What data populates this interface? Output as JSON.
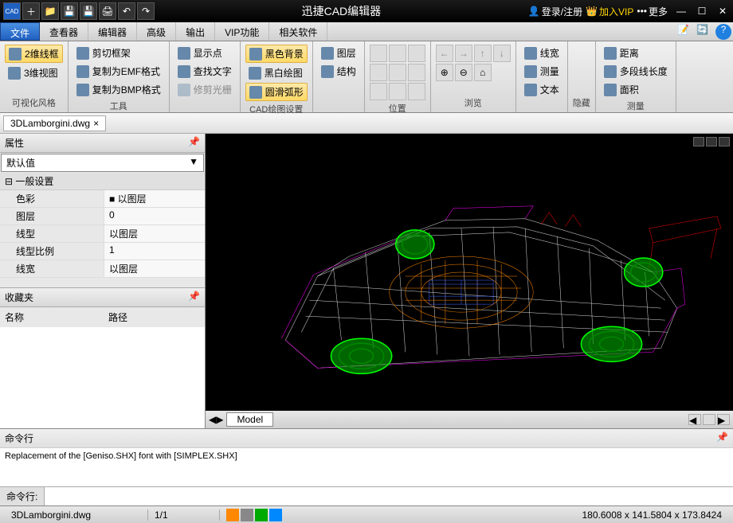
{
  "app": {
    "title": "迅捷CAD编辑器",
    "login": "登录/注册",
    "vip": "加入VIP",
    "more": "更多"
  },
  "menu": {
    "tabs": [
      "文件",
      "查看器",
      "编辑器",
      "高级",
      "输出",
      "VIP功能",
      "相关软件"
    ],
    "active_index": 0
  },
  "ribbon": {
    "groups": [
      {
        "label": "可视化风格",
        "items": [
          {
            "t": "2维线框",
            "hl": true
          },
          {
            "t": "3维视图"
          }
        ]
      },
      {
        "label": "工具",
        "items": [
          {
            "t": "剪切框架"
          },
          {
            "t": "复制为EMF格式"
          },
          {
            "t": "复制为BMP格式"
          }
        ]
      },
      {
        "label": "",
        "items": [
          {
            "t": "显示点"
          },
          {
            "t": "查找文字"
          },
          {
            "t": "修剪光栅",
            "disabled": true
          }
        ]
      },
      {
        "label": "CAD绘图设置",
        "items": [
          {
            "t": "黑色背景",
            "hl": true
          },
          {
            "t": "黑白绘图"
          },
          {
            "t": "圆滑弧形",
            "hl": true
          }
        ]
      },
      {
        "label": "",
        "items": [
          {
            "t": "图层"
          },
          {
            "t": "结构"
          }
        ]
      },
      {
        "label": "位置",
        "icons": true
      },
      {
        "label": "浏览",
        "arrows": true
      },
      {
        "label": "",
        "items": [
          {
            "t": "线宽"
          },
          {
            "t": "测量"
          },
          {
            "t": "文本"
          }
        ]
      },
      {
        "label": "隐藏"
      },
      {
        "label": "测量",
        "items": [
          {
            "t": "距离"
          },
          {
            "t": "多段线长度"
          },
          {
            "t": "面积"
          }
        ]
      }
    ]
  },
  "doc": {
    "filename": "3DLamborgini.dwg"
  },
  "props": {
    "title": "属性",
    "default": "默认值",
    "section": "一般设置",
    "rows": [
      {
        "k": "色彩",
        "v": "■ 以图层"
      },
      {
        "k": "图层",
        "v": "0"
      },
      {
        "k": "线型",
        "v": "以图层"
      },
      {
        "k": "线型比例",
        "v": "1"
      },
      {
        "k": "线宽",
        "v": "以图层"
      }
    ]
  },
  "fav": {
    "title": "收藏夹",
    "cols": [
      "名称",
      "路径"
    ]
  },
  "model_tab": "Model",
  "cmd": {
    "title": "命令行",
    "log": "Replacement of the [Geniso.SHX] font with [SIMPLEX.SHX]",
    "prompt": "命令行:"
  },
  "status": {
    "file": "3DLamborgini.dwg",
    "page": "1/1",
    "coords": "180.6008 x 141.5804 x 173.8424"
  },
  "colors": {
    "wireframe_body": "#dddddd",
    "wireframe_accent": "#ff00ff",
    "wireframe_interior": "#ff8800",
    "wireframe_detail": "#4466ff",
    "wheel": "#00ff00",
    "wheel_dark": "#008800",
    "spoiler": "#ff0000"
  }
}
